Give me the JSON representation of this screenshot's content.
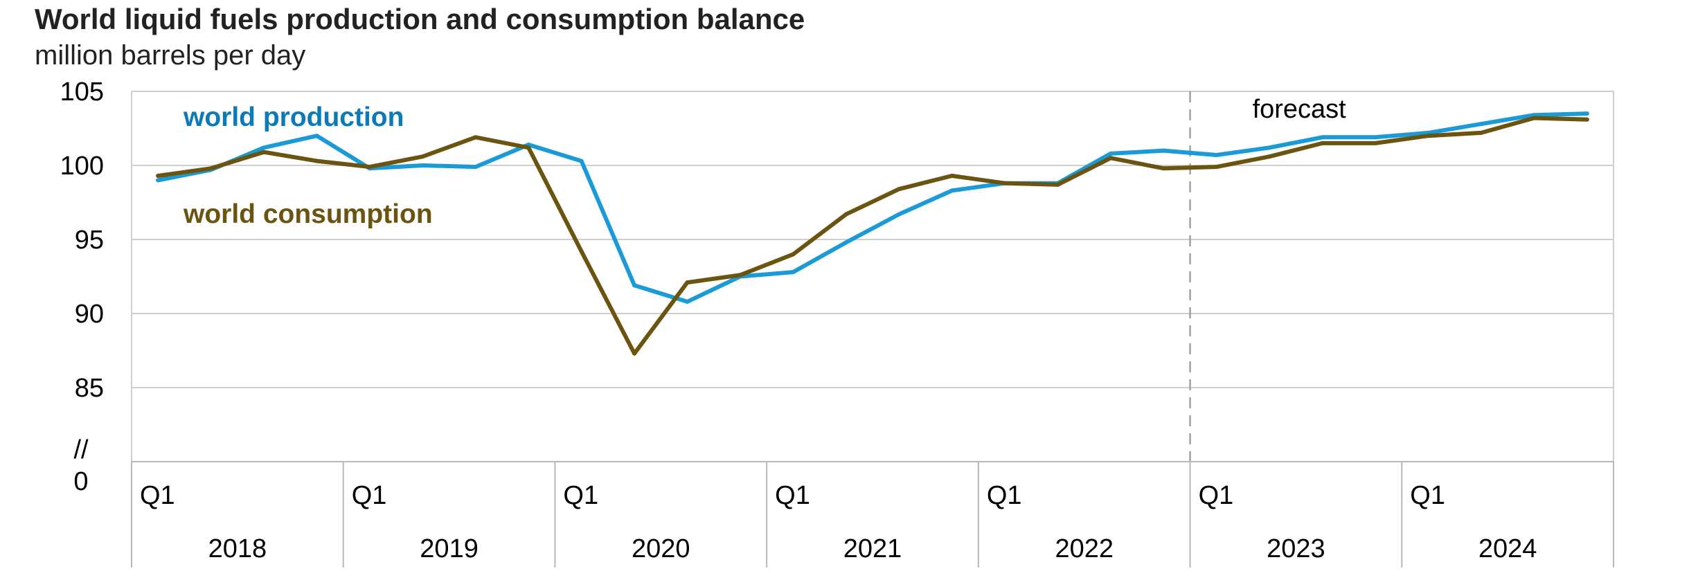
{
  "chart_data": {
    "type": "line",
    "title": "World liquid fuels production and consumption balance",
    "subtitle": "million barrels per day",
    "xlabel": "",
    "ylabel": "",
    "ylim": [
      80,
      105
    ],
    "y_ticks": [
      "105",
      "100",
      "95",
      "90",
      "85"
    ],
    "y_axis_break_label": "//",
    "y_zero_label": "0",
    "grid": true,
    "quarter_label": "Q1",
    "years": [
      "2018",
      "2019",
      "2020",
      "2021",
      "2022",
      "2023",
      "2024"
    ],
    "x": [
      "2018Q1",
      "2018Q2",
      "2018Q3",
      "2018Q4",
      "2019Q1",
      "2019Q2",
      "2019Q3",
      "2019Q4",
      "2020Q1",
      "2020Q2",
      "2020Q3",
      "2020Q4",
      "2021Q1",
      "2021Q2",
      "2021Q3",
      "2021Q4",
      "2022Q1",
      "2022Q2",
      "2022Q3",
      "2022Q4",
      "2023Q1",
      "2023Q2",
      "2023Q3",
      "2023Q4",
      "2024Q1",
      "2024Q2",
      "2024Q3",
      "2024Q4"
    ],
    "forecast_label": "forecast",
    "forecast_start": "2023Q1",
    "series": [
      {
        "name": "world production",
        "color": "#1a9ad6",
        "label_color": "#0a7ab8",
        "values": [
          99.0,
          99.7,
          101.2,
          102.0,
          99.8,
          100.0,
          99.9,
          101.4,
          100.3,
          91.9,
          90.8,
          92.5,
          92.8,
          94.8,
          96.7,
          98.3,
          98.8,
          98.8,
          100.8,
          101.0,
          100.7,
          101.2,
          101.9,
          101.9,
          102.2,
          102.8,
          103.4,
          103.5
        ]
      },
      {
        "name": "world consumption",
        "color": "#6b5410",
        "label_color": "#6b5410",
        "values": [
          99.3,
          99.8,
          100.9,
          100.3,
          99.9,
          100.6,
          101.9,
          101.2,
          94.2,
          87.3,
          92.1,
          92.6,
          94.0,
          96.7,
          98.4,
          99.3,
          98.8,
          98.7,
          100.5,
          99.8,
          99.9,
          100.6,
          101.5,
          101.5,
          102.0,
          102.2,
          103.2,
          103.1
        ]
      }
    ]
  }
}
